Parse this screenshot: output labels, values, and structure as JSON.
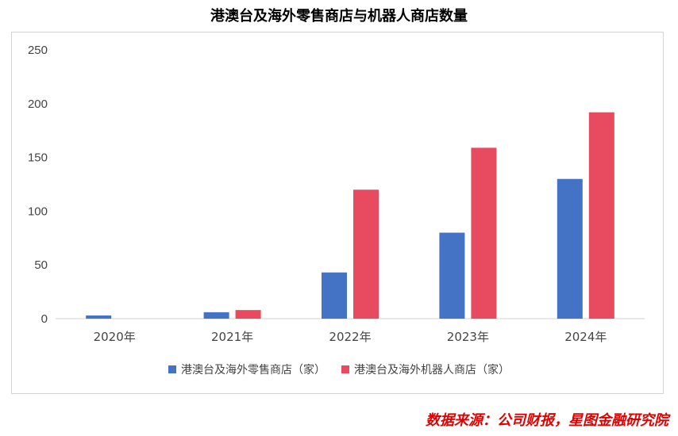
{
  "chart_data": {
    "type": "bar",
    "title": "港澳台及海外零售商店与机器人商店数量",
    "categories": [
      "2020年",
      "2021年",
      "2022年",
      "2023年",
      "2024年"
    ],
    "ylim": [
      0,
      250
    ],
    "yticks": [
      0,
      50,
      100,
      150,
      200,
      250
    ],
    "grid": false,
    "legend_position": "bottom",
    "series": [
      {
        "name": "港澳台及海外零售商店（家）",
        "color": "#4472c4",
        "values": [
          3,
          6,
          43,
          80,
          130
        ]
      },
      {
        "name": "港澳台及海外机器人商店（家）",
        "color": "#e84a5f",
        "values": [
          0,
          8,
          120,
          159,
          192
        ]
      }
    ]
  },
  "source_note": "数据来源：公司财报，星图金融研究院"
}
